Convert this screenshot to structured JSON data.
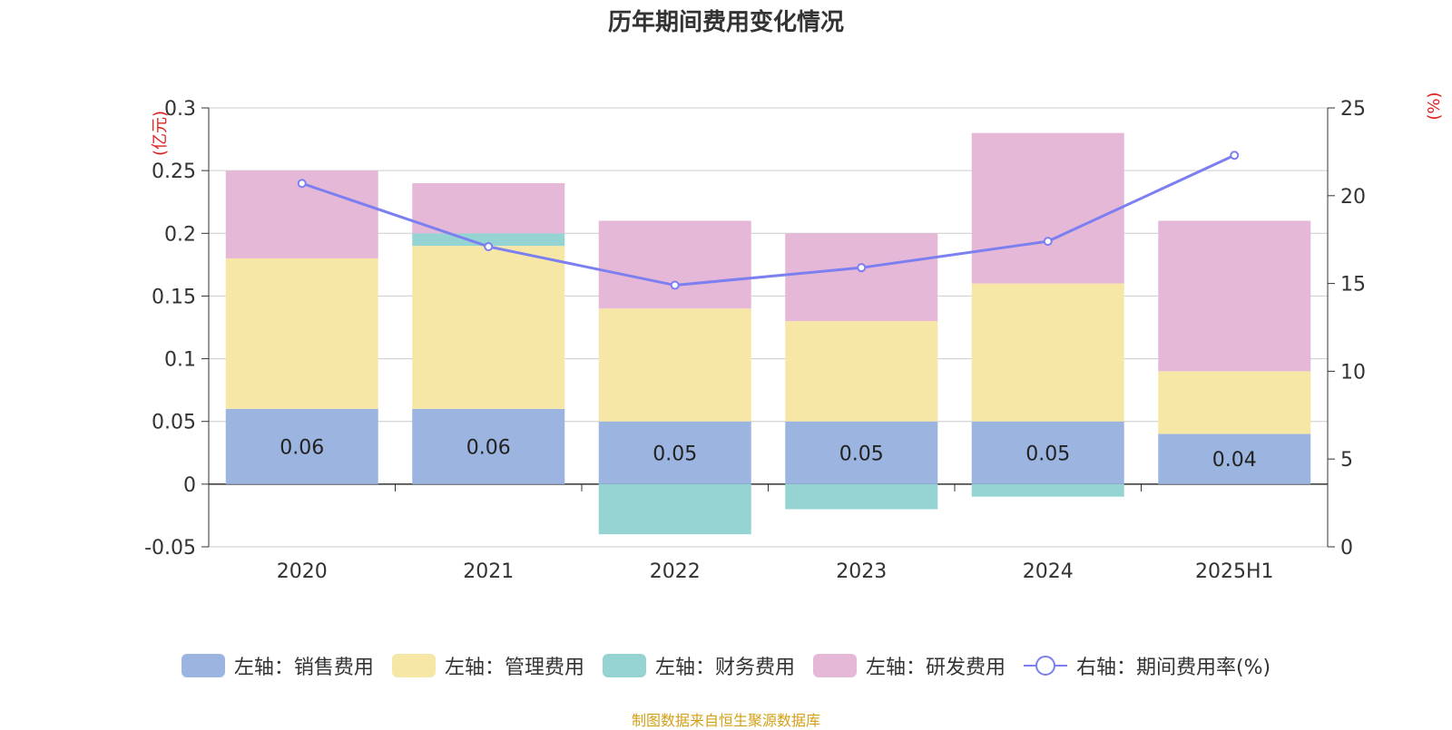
{
  "chart_data": {
    "type": "bar",
    "title": "历年期间费用变化情况",
    "categories": [
      "2020",
      "2021",
      "2022",
      "2023",
      "2024",
      "2025H1"
    ],
    "left_axis": {
      "label": "(亿元)",
      "ylim": [
        -0.05,
        0.3
      ],
      "ticks": [
        "-0.05",
        "0",
        "0.05",
        "0.1",
        "0.15",
        "0.2",
        "0.25",
        "0.3"
      ]
    },
    "right_axis": {
      "label": "(%)",
      "ylim": [
        0,
        25
      ],
      "ticks": [
        "0",
        "5",
        "10",
        "15",
        "20",
        "25"
      ]
    },
    "series": [
      {
        "name": "左轴：销售费用",
        "type": "bar",
        "axis": "left",
        "color": "#9bb5e0",
        "values": [
          0.06,
          0.06,
          0.05,
          0.05,
          0.05,
          0.04
        ],
        "labels": [
          "0.06",
          "0.06",
          "0.05",
          "0.05",
          "0.05",
          "0.04"
        ]
      },
      {
        "name": "左轴：管理费用",
        "type": "bar",
        "axis": "left",
        "color": "#f7e7a6",
        "values": [
          0.12,
          0.13,
          0.09,
          0.08,
          0.11,
          0.05
        ]
      },
      {
        "name": "左轴：财务费用",
        "type": "bar",
        "axis": "left",
        "color": "#96d4d4",
        "values": [
          0.0,
          0.01,
          -0.04,
          -0.02,
          -0.01,
          0.0
        ]
      },
      {
        "name": "左轴：研发费用",
        "type": "bar",
        "axis": "left",
        "color": "#e6b8d8",
        "values": [
          0.07,
          0.04,
          0.07,
          0.07,
          0.12,
          0.12
        ]
      },
      {
        "name": "右轴：期间费用率(%)",
        "type": "line",
        "axis": "right",
        "color": "#7b7ff0",
        "values": [
          20.7,
          17.1,
          14.9,
          15.9,
          17.4,
          22.3
        ]
      }
    ],
    "grid": true,
    "legend_position": "bottom"
  },
  "footer": "制图数据来自恒生聚源数据库"
}
